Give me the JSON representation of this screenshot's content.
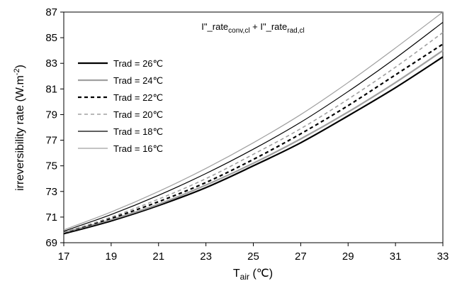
{
  "chart_data": {
    "type": "line",
    "annotation": {
      "part1": "I\"_rate",
      "sub1": "conv,cl",
      "plus": " + I\"_rate",
      "sub2": "rad,cl"
    },
    "xlabel": {
      "main": "T",
      "sub": "air",
      "unit": " (℃)"
    },
    "ylabel": {
      "main": "irreversibility rate (W.m",
      "sup": "-2",
      "end": ")"
    },
    "xlim": [
      17,
      33
    ],
    "ylim": [
      69,
      87
    ],
    "xticks": [
      "17",
      "19",
      "21",
      "23",
      "25",
      "27",
      "29",
      "31",
      "33"
    ],
    "yticks": [
      "69",
      "71",
      "73",
      "75",
      "77",
      "79",
      "81",
      "83",
      "85",
      "87"
    ],
    "grid": false,
    "legend_position": "left",
    "x": [
      17,
      19,
      21,
      23,
      25,
      27,
      29,
      31,
      33
    ],
    "series": [
      {
        "name": "Trad = 26℃",
        "color": "#000000",
        "width": 2.2,
        "dash": "",
        "values": [
          69.7,
          70.7,
          71.9,
          73.3,
          75.0,
          76.8,
          78.9,
          81.1,
          83.5
        ]
      },
      {
        "name": "Trad = 24℃",
        "color": "#a0a0a0",
        "width": 2.2,
        "dash": "",
        "values": [
          69.8,
          70.8,
          72.0,
          73.5,
          75.2,
          77.1,
          79.2,
          81.5,
          84.0
        ]
      },
      {
        "name": "Trad = 22℃",
        "color": "#000000",
        "width": 2.2,
        "dash": "5,4",
        "values": [
          69.8,
          70.9,
          72.2,
          73.7,
          75.5,
          77.5,
          79.7,
          82.1,
          84.5
        ]
      },
      {
        "name": "Trad = 20℃",
        "color": "#a0a0a0",
        "width": 1.6,
        "dash": "5,4",
        "values": [
          69.8,
          71.0,
          72.4,
          74.0,
          75.9,
          77.9,
          80.2,
          82.7,
          85.4
        ]
      },
      {
        "name": "Trad = 18℃",
        "color": "#000000",
        "width": 1.2,
        "dash": "",
        "values": [
          69.9,
          71.2,
          72.7,
          74.4,
          76.3,
          78.4,
          80.8,
          83.4,
          86.2
        ]
      },
      {
        "name": "Trad = 16℃",
        "color": "#a0a0a0",
        "width": 1.2,
        "dash": "",
        "values": [
          70.0,
          71.4,
          73.0,
          74.8,
          76.8,
          79.0,
          81.5,
          84.2,
          87.0
        ]
      }
    ]
  }
}
